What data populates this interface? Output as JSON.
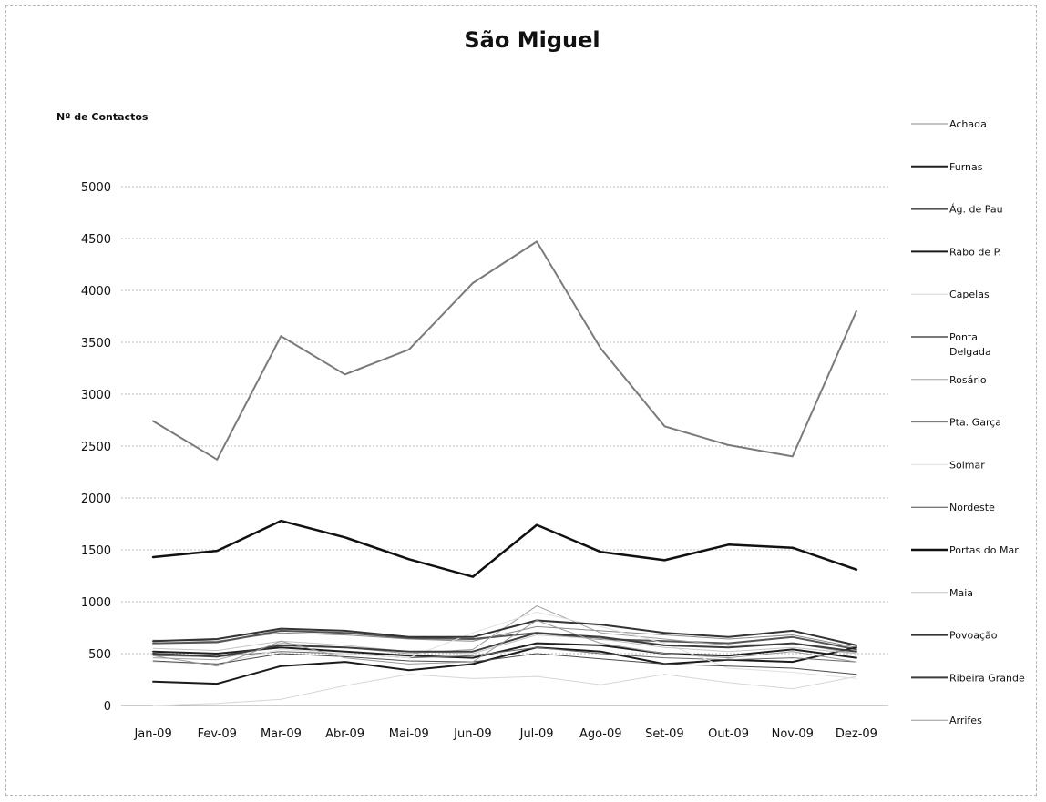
{
  "chart_data": {
    "type": "line",
    "title": "São Miguel",
    "ylabel": "Nº de Contactos",
    "xlabel": "",
    "categories": [
      "Jan-09",
      "Fev-09",
      "Mar-09",
      "Abr-09",
      "Mai-09",
      "Jun-09",
      "Jul-09",
      "Ago-09",
      "Set-09",
      "Out-09",
      "Nov-09",
      "Dez-09"
    ],
    "ylim": [
      0,
      5000
    ],
    "yticks": [
      0,
      500,
      1000,
      1500,
      2000,
      2500,
      3000,
      3500,
      4000,
      4500,
      5000
    ],
    "grid": true,
    "legend_position": "right",
    "series": [
      {
        "name": "Achada",
        "color": "#8a8a8a",
        "width": 1,
        "values": [
          630,
          620,
          700,
          680,
          640,
          620,
          760,
          720,
          680,
          640,
          680,
          560
        ]
      },
      {
        "name": "Furnas",
        "color": "#202020",
        "width": 2,
        "values": [
          520,
          500,
          560,
          520,
          480,
          460,
          600,
          580,
          500,
          480,
          540,
          460
        ]
      },
      {
        "name": "Ág. de Pau",
        "color": "#555555",
        "width": 2,
        "values": [
          600,
          610,
          720,
          700,
          650,
          640,
          700,
          640,
          620,
          600,
          660,
          540
        ]
      },
      {
        "name": "Rabo de P.",
        "color": "#1a1a1a",
        "width": 2,
        "values": [
          230,
          210,
          380,
          420,
          340,
          400,
          560,
          520,
          400,
          440,
          420,
          560
        ]
      },
      {
        "name": "Capelas",
        "color": "#d6d6d6",
        "width": 1,
        "values": [
          0,
          20,
          60,
          190,
          300,
          260,
          280,
          200,
          300,
          220,
          160,
          280
        ]
      },
      {
        "name": "Ponta Delgada",
        "color": "#7a7a7a",
        "width": 2,
        "values": [
          2740,
          2370,
          3560,
          3190,
          3430,
          4070,
          4470,
          3440,
          2690,
          2510,
          2400,
          3800
        ]
      },
      {
        "name": "Rosário",
        "color": "#a0a0a0",
        "width": 1,
        "values": [
          460,
          440,
          600,
          560,
          500,
          540,
          960,
          700,
          640,
          580,
          600,
          500
        ]
      },
      {
        "name": "Pta. Garça",
        "color": "#6a6a6a",
        "width": 1,
        "values": [
          480,
          470,
          520,
          500,
          460,
          480,
          560,
          500,
          460,
          440,
          460,
          420
        ]
      },
      {
        "name": "Solmar",
        "color": "#e0e0e0",
        "width": 1,
        "values": [
          420,
          400,
          540,
          500,
          460,
          700,
          900,
          760,
          600,
          360,
          320,
          260
        ]
      },
      {
        "name": "Nordeste",
        "color": "#4a4a4a",
        "width": 1,
        "values": [
          430,
          400,
          500,
          470,
          430,
          420,
          500,
          450,
          400,
          380,
          360,
          300
        ]
      },
      {
        "name": "Portas do Mar",
        "color": "#111111",
        "width": 2.5,
        "values": [
          1430,
          1490,
          1780,
          1620,
          1410,
          1240,
          1740,
          1480,
          1400,
          1550,
          1520,
          1310
        ]
      },
      {
        "name": "Maia",
        "color": "#c4c4c4",
        "width": 1,
        "values": [
          550,
          530,
          620,
          580,
          520,
          500,
          680,
          640,
          560,
          520,
          560,
          500
        ]
      },
      {
        "name": "Povoação",
        "color": "#333333",
        "width": 2,
        "values": [
          620,
          640,
          740,
          720,
          660,
          660,
          820,
          780,
          700,
          660,
          720,
          580
        ]
      },
      {
        "name": "Ribeira Grande",
        "color": "#3c3c3c",
        "width": 2,
        "values": [
          500,
          470,
          580,
          560,
          520,
          520,
          700,
          660,
          580,
          560,
          600,
          520
        ]
      },
      {
        "name": "Arrifes",
        "color": "#999999",
        "width": 1,
        "values": [
          480,
          380,
          620,
          460,
          400,
          420,
          820,
          600,
          500,
          460,
          520,
          420
        ]
      }
    ]
  }
}
